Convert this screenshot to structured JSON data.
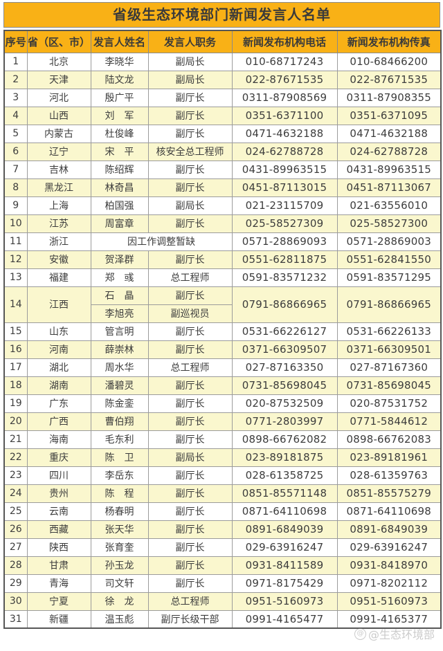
{
  "title": "省级生态环境部门新闻发言人名单",
  "columns": [
    "序号",
    "省（区、市）",
    "发言人姓名",
    "发言人职务",
    "新闻发布机构电话",
    "新闻发布机构传真"
  ],
  "rows": [
    {
      "num": "1",
      "province": "北京",
      "name": "李晓华",
      "title": "副局长",
      "phone": "010-68717243",
      "fax": "010-68466200"
    },
    {
      "num": "2",
      "province": "天津",
      "name": "陆文龙",
      "title": "副局长",
      "phone": "022-87671535",
      "fax": "022-87671535"
    },
    {
      "num": "3",
      "province": "河北",
      "name": "殷广平",
      "title": "副厅长",
      "phone": "0311-87908569",
      "fax": "0311-87908355"
    },
    {
      "num": "4",
      "province": "山西",
      "name": "刘　军",
      "title": "副厅长",
      "phone": "0351-6371100",
      "fax": "0351-6371095"
    },
    {
      "num": "5",
      "province": "内蒙古",
      "name": "杜俊峰",
      "title": "副厅长",
      "phone": "0471-4632188",
      "fax": "0471-4632188"
    },
    {
      "num": "6",
      "province": "辽宁",
      "name": "宋　平",
      "title": "核安全总工程师",
      "phone": "024-62788728",
      "fax": "024-62788728"
    },
    {
      "num": "7",
      "province": "吉林",
      "name": "陈绍辉",
      "title": "副厅长",
      "phone": "0431-89963515",
      "fax": "0431-89963515"
    },
    {
      "num": "8",
      "province": "黑龙江",
      "name": "林奇昌",
      "title": "副厅长",
      "phone": "0451-87113015",
      "fax": "0451-87113067"
    },
    {
      "num": "9",
      "province": "上海",
      "name": "柏国强",
      "title": "副局长",
      "phone": "021-23115709",
      "fax": "021-63556010"
    },
    {
      "num": "10",
      "province": "江苏",
      "name": "周富章",
      "title": "副厅长",
      "phone": "025-58527309",
      "fax": "025-58527300"
    },
    {
      "num": "11",
      "province": "浙江",
      "note": "因工作调整暂缺",
      "phone": "0571-28869093",
      "fax": "0571-28869003"
    },
    {
      "num": "12",
      "province": "安徽",
      "name": "贺泽群",
      "title": "副厅长",
      "phone": "0551-62811875",
      "fax": "0551-62841550"
    },
    {
      "num": "13",
      "province": "福建",
      "name": "郑　彧",
      "title": "总工程师",
      "phone": "0591-83571232",
      "fax": "0591-83571295"
    },
    {
      "num": "14",
      "province": "江西",
      "people": [
        {
          "name": "石　晶",
          "title": "副厅长"
        },
        {
          "name": "李旭亮",
          "title": "副巡视员"
        }
      ],
      "phone": "0791-86866965",
      "fax": "0791-86866965"
    },
    {
      "num": "15",
      "province": "山东",
      "name": "管言明",
      "title": "副厅长",
      "phone": "0531-66226127",
      "fax": "0531-66226133"
    },
    {
      "num": "16",
      "province": "河南",
      "name": "薛崇林",
      "title": "副厅长",
      "phone": "0371-66309507",
      "fax": "0371-66309501"
    },
    {
      "num": "17",
      "province": "湖北",
      "name": "周水华",
      "title": "总工程师",
      "phone": "027-87163350",
      "fax": "027-87167360"
    },
    {
      "num": "18",
      "province": "湖南",
      "name": "潘碧灵",
      "title": "副厅长",
      "phone": "0731-85698045",
      "fax": "0731-85698045"
    },
    {
      "num": "19",
      "province": "广东",
      "name": "陈金銮",
      "title": "副厅长",
      "phone": "020-87532509",
      "fax": "020-87531752"
    },
    {
      "num": "20",
      "province": "广西",
      "name": "曹伯翔",
      "title": "副厅长",
      "phone": "0771-2803997",
      "fax": "0771-5844612"
    },
    {
      "num": "21",
      "province": "海南",
      "name": "毛东利",
      "title": "副厅长",
      "phone": "0898-66762082",
      "fax": "0898-66762083"
    },
    {
      "num": "22",
      "province": "重庆",
      "name": "陈　卫",
      "title": "副局长",
      "phone": "023-89181875",
      "fax": "023-89181961"
    },
    {
      "num": "23",
      "province": "四川",
      "name": "李岳东",
      "title": "副厅长",
      "phone": "028-61358725",
      "fax": "028-61359763"
    },
    {
      "num": "24",
      "province": "贵州",
      "name": "陈　程",
      "title": "副厅长",
      "phone": "0851-85571148",
      "fax": "0851-85575279"
    },
    {
      "num": "25",
      "province": "云南",
      "name": "杨春明",
      "title": "副厅长",
      "phone": "0871-64110698",
      "fax": "0871-64110698"
    },
    {
      "num": "26",
      "province": "西藏",
      "name": "张天华",
      "title": "副厅长",
      "phone": "0891-6849039",
      "fax": "0891-6849039"
    },
    {
      "num": "27",
      "province": "陕西",
      "name": "张育奎",
      "title": "副厅长",
      "phone": "029-63916247",
      "fax": "029-63916247"
    },
    {
      "num": "28",
      "province": "甘肃",
      "name": "孙玉龙",
      "title": "副厅长",
      "phone": "0931-8411589",
      "fax": "0931-8418970"
    },
    {
      "num": "29",
      "province": "青海",
      "name": "司文轩",
      "title": "副厅长",
      "phone": "0971-8175429",
      "fax": "0971-8202112"
    },
    {
      "num": "30",
      "province": "宁夏",
      "name": "徐　龙",
      "title": "总工程师",
      "phone": "0951-5160973",
      "fax": "0951-5160973"
    },
    {
      "num": "31",
      "province": "新疆",
      "name": "温玉彪",
      "title": "副厅长级干部",
      "phone": "0991-4165477",
      "fax": "0991-4165377"
    }
  ],
  "watermark": "@生态环境部",
  "colors": {
    "header_bg": "#F9B116",
    "row_alt_bg": "#FAF7CE",
    "inner_border": "#9b9b9b",
    "outer_border": "#565656",
    "text": "#3c3c3c"
  }
}
